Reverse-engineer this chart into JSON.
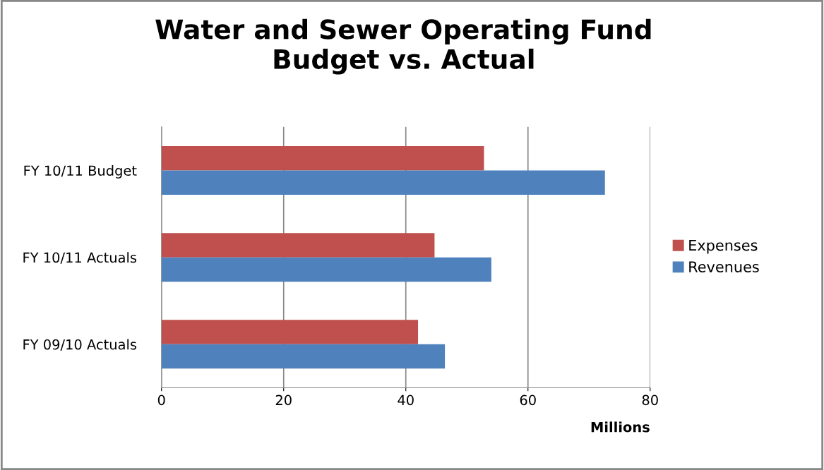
{
  "chart_data": {
    "type": "bar",
    "orientation": "horizontal",
    "title": "Water and Sewer Operating Fund\nBudget vs. Actual",
    "xlabel": "Millions",
    "categories": [
      "FY 10/11 Budget",
      "FY 10/11 Actuals",
      "FY 09/10 Actuals"
    ],
    "series": [
      {
        "name": "Expenses",
        "color": "#c0504d",
        "values": [
          52.8,
          44.7,
          42.0
        ]
      },
      {
        "name": "Revenues",
        "color": "#4f81bd",
        "values": [
          72.6,
          54.0,
          46.4
        ]
      }
    ],
    "xlim": [
      0,
      80
    ],
    "xticks": [
      0,
      20,
      40,
      60,
      80
    ],
    "grid": "x",
    "legend": "right"
  }
}
